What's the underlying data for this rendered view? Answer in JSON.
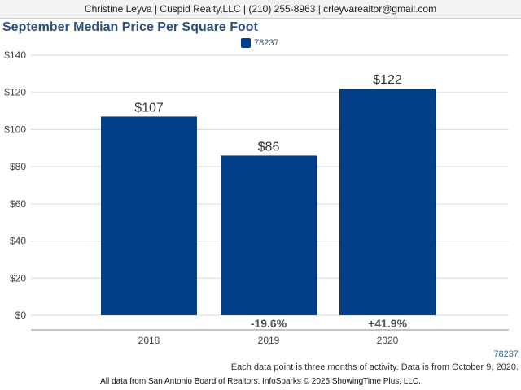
{
  "header": {
    "contact": "Christine Leyva | Cuspid Realty,LLC | (210) 255-8963 | crleyvarealtor@gmail.com"
  },
  "footer": {
    "tag": "78237",
    "note": "Each data point is three months of activity. Data is from October 9, 2020.",
    "credit": "All data from San Antonio Board of Realtors. InfoSparks © 2025 ShowingTime Plus, LLC."
  },
  "colors": {
    "bar": "#003f87",
    "title": "#2c5080",
    "grid": "#d9d9d9"
  },
  "chart_data": {
    "type": "bar",
    "title": "September Median Price Per Square Foot",
    "categories": [
      "2018",
      "2019",
      "2020"
    ],
    "series": [
      {
        "name": "78237",
        "values": [
          107,
          86,
          122
        ]
      }
    ],
    "data_labels": [
      "$107",
      "$86",
      "$122"
    ],
    "change_labels": [
      "",
      "-19.6%",
      "+41.9%"
    ],
    "yticks": [
      0,
      20,
      40,
      60,
      80,
      100,
      120,
      140
    ],
    "ytick_labels": [
      "$0",
      "$20",
      "$40",
      "$60",
      "$80",
      "$100",
      "$120",
      "$140"
    ],
    "ylim": [
      0,
      140
    ],
    "grid": true,
    "legend_position": "top-center"
  }
}
